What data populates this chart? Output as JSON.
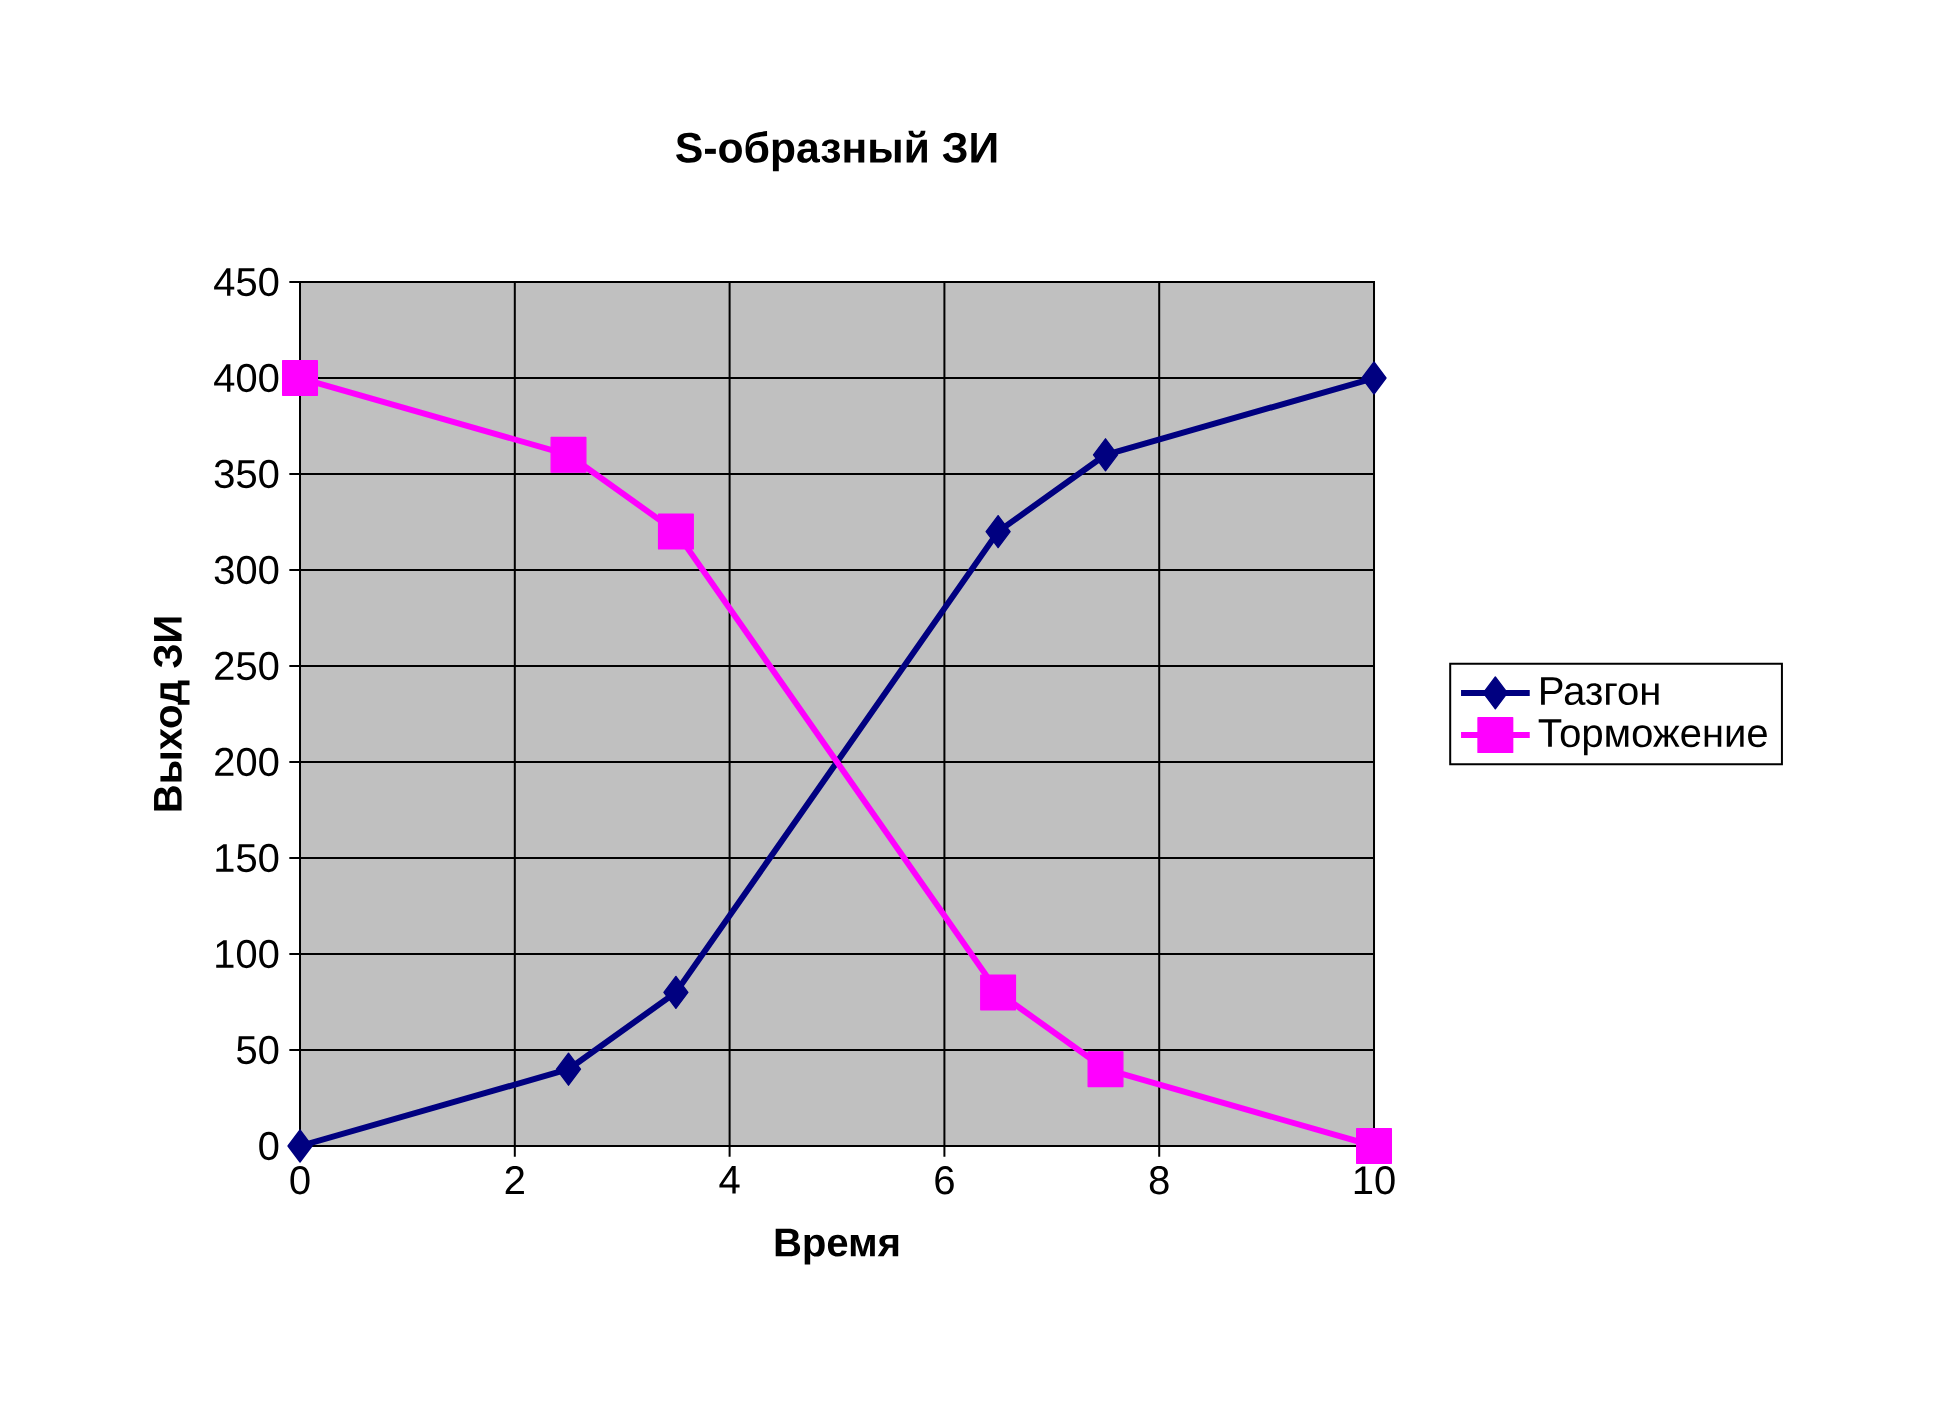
{
  "chart_data": {
    "type": "line",
    "title": "S-образный ЗИ",
    "xlabel": "Время",
    "ylabel": "Выход ЗИ",
    "x": [
      0,
      2.5,
      3.5,
      6.5,
      7.5,
      10
    ],
    "series": [
      {
        "name": "Разгон",
        "color": "#000080",
        "marker": "diamond",
        "values": [
          0,
          40,
          80,
          320,
          360,
          400
        ]
      },
      {
        "name": "Торможение",
        "color": "#ff00ff",
        "marker": "square",
        "values": [
          400,
          360,
          320,
          80,
          40,
          0
        ]
      }
    ],
    "xlim": [
      0,
      10
    ],
    "xticks": [
      0,
      2,
      4,
      6,
      8,
      10
    ],
    "ylim": [
      0,
      450
    ],
    "yticks": [
      0,
      50,
      100,
      150,
      200,
      250,
      300,
      350,
      400,
      450
    ],
    "grid": true,
    "legend": "right",
    "line_style": "solid"
  }
}
